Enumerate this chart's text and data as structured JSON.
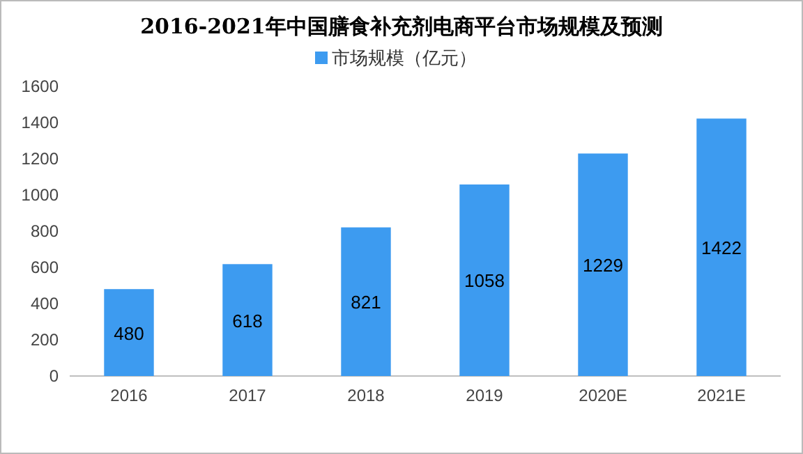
{
  "chart_data": {
    "type": "bar",
    "title": "2016-2021年中国膳食补充剂电商平台市场规模及预测",
    "categories": [
      "2016",
      "2017",
      "2018",
      "2019",
      "2020E",
      "2021E"
    ],
    "series": [
      {
        "name": "市场规模（亿元）",
        "color": "#3d9bf0",
        "values": [
          480,
          618,
          821,
          1058,
          1229,
          1422
        ]
      }
    ],
    "ylim": [
      0,
      1600
    ],
    "yticks": [
      0,
      200,
      400,
      600,
      800,
      1000,
      1200,
      1400,
      1600
    ],
    "data_labels": true,
    "legend": "top",
    "grid": false
  }
}
